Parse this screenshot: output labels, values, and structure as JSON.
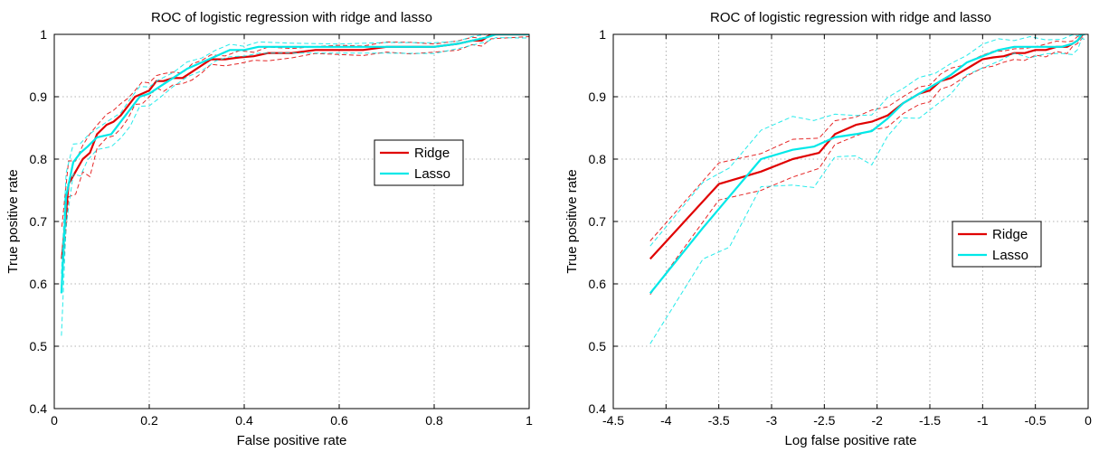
{
  "chart_data": [
    {
      "type": "line",
      "title": "ROC of logistic regression with ridge and lasso",
      "xlabel": "False positive rate",
      "ylabel": "True positive rate",
      "xlim": [
        0,
        1
      ],
      "ylim": [
        0.4,
        1
      ],
      "xticks": [
        0,
        0.2,
        0.4,
        0.6,
        0.8,
        1
      ],
      "xtick_labels": [
        "0",
        "0.2",
        "0.4",
        "0.6",
        "0.8",
        "1"
      ],
      "yticks": [
        0.4,
        0.5,
        0.6,
        0.7,
        0.8,
        0.9,
        1
      ],
      "ytick_labels": [
        "0.4",
        "0.5",
        "0.6",
        "0.7",
        "0.8",
        "0.9",
        "1"
      ],
      "grid": true,
      "legend_position": "right",
      "series": [
        {
          "name": "Ridge",
          "color": "#e00000",
          "x": [
            0.016,
            0.03,
            0.045,
            0.06,
            0.075,
            0.09,
            0.11,
            0.125,
            0.14,
            0.155,
            0.17,
            0.185,
            0.2,
            0.215,
            0.23,
            0.25,
            0.27,
            0.29,
            0.31,
            0.33,
            0.36,
            0.39,
            0.42,
            0.45,
            0.5,
            0.55,
            0.6,
            0.65,
            0.7,
            0.75,
            0.8,
            0.85,
            0.88,
            0.9,
            0.92,
            1.0
          ],
          "y": [
            0.64,
            0.76,
            0.78,
            0.8,
            0.81,
            0.84,
            0.855,
            0.86,
            0.87,
            0.885,
            0.9,
            0.905,
            0.91,
            0.925,
            0.925,
            0.93,
            0.93,
            0.94,
            0.95,
            0.96,
            0.96,
            0.963,
            0.965,
            0.97,
            0.97,
            0.975,
            0.975,
            0.975,
            0.98,
            0.98,
            0.98,
            0.985,
            0.99,
            0.99,
            1.0,
            1.0
          ]
        },
        {
          "name": "Lasso",
          "color": "#00e8e8",
          "x": [
            0.015,
            0.025,
            0.04,
            0.055,
            0.07,
            0.09,
            0.12,
            0.14,
            0.16,
            0.18,
            0.2,
            0.22,
            0.25,
            0.28,
            0.31,
            0.34,
            0.37,
            0.4,
            0.43,
            0.5,
            0.6,
            0.7,
            0.8,
            0.85,
            0.88,
            0.91,
            0.93,
            1.0
          ],
          "y": [
            0.585,
            0.74,
            0.795,
            0.81,
            0.82,
            0.835,
            0.84,
            0.86,
            0.88,
            0.9,
            0.905,
            0.915,
            0.93,
            0.945,
            0.955,
            0.965,
            0.975,
            0.975,
            0.98,
            0.98,
            0.98,
            0.98,
            0.98,
            0.985,
            0.99,
            0.995,
            1.0,
            1.0
          ]
        }
      ]
    },
    {
      "type": "line",
      "title": "ROC of logistic regression with ridge and lasso",
      "xlabel": "Log false positive rate",
      "ylabel": "True positive rate",
      "xlim": [
        -4.5,
        0
      ],
      "ylim": [
        0.4,
        1
      ],
      "xticks": [
        -4.5,
        -4,
        -3.5,
        -3,
        -2.5,
        -2,
        -1.5,
        -1,
        -0.5,
        0
      ],
      "xtick_labels": [
        "-4.5",
        "-4",
        "-3.5",
        "-3",
        "-2.5",
        "-2",
        "-1.5",
        "-1",
        "-0.5",
        "0"
      ],
      "yticks": [
        0.4,
        0.5,
        0.6,
        0.7,
        0.8,
        0.9,
        1
      ],
      "ytick_labels": [
        "0.4",
        "0.5",
        "0.6",
        "0.7",
        "0.8",
        "0.9",
        "1"
      ],
      "grid": true,
      "legend_position": "right",
      "series": [
        {
          "name": "Ridge",
          "color": "#e00000",
          "x": [
            -4.15,
            -3.5,
            -3.1,
            -2.8,
            -2.55,
            -2.4,
            -2.2,
            -2.05,
            -1.9,
            -1.75,
            -1.6,
            -1.5,
            -1.4,
            -1.3,
            -1.2,
            -1.1,
            -1.0,
            -0.9,
            -0.8,
            -0.7,
            -0.6,
            -0.5,
            -0.4,
            -0.3,
            -0.2,
            -0.15,
            -0.1,
            -0.05
          ],
          "y": [
            0.64,
            0.76,
            0.78,
            0.8,
            0.81,
            0.84,
            0.855,
            0.86,
            0.87,
            0.89,
            0.905,
            0.91,
            0.925,
            0.93,
            0.94,
            0.95,
            0.96,
            0.963,
            0.965,
            0.97,
            0.97,
            0.975,
            0.975,
            0.98,
            0.98,
            0.985,
            0.99,
            1.0
          ]
        },
        {
          "name": "Lasso",
          "color": "#00e8e8",
          "x": [
            -4.15,
            -3.65,
            -3.4,
            -3.1,
            -2.8,
            -2.6,
            -2.4,
            -2.2,
            -2.05,
            -1.9,
            -1.75,
            -1.6,
            -1.45,
            -1.3,
            -1.15,
            -1.0,
            -0.85,
            -0.7,
            -0.55,
            -0.4,
            -0.25,
            -0.15,
            -0.1,
            -0.06,
            -0.03
          ],
          "y": [
            0.585,
            0.69,
            0.74,
            0.8,
            0.815,
            0.82,
            0.835,
            0.84,
            0.845,
            0.865,
            0.89,
            0.905,
            0.92,
            0.935,
            0.955,
            0.965,
            0.975,
            0.98,
            0.98,
            0.98,
            0.98,
            0.985,
            0.99,
            1.0,
            1.0
          ]
        }
      ]
    }
  ]
}
